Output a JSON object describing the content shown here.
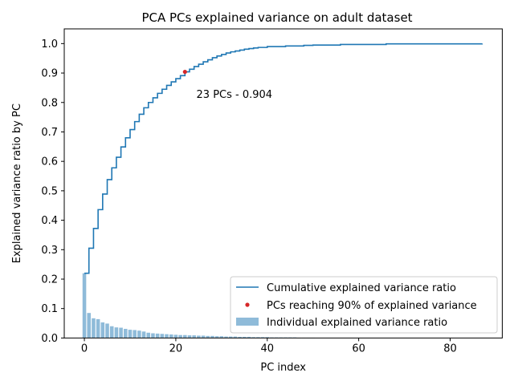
{
  "chart_data": {
    "type": "bar",
    "title": "PCA PCs explained variance on adult dataset",
    "xlabel": "PC index",
    "ylabel": "Explained variance ratio by PC",
    "xlim": [
      -4.4,
      91.4
    ],
    "ylim": [
      0,
      1.05
    ],
    "xticks": [
      0,
      20,
      40,
      60,
      80
    ],
    "yticks": [
      0.0,
      0.1,
      0.2,
      0.3,
      0.4,
      0.5,
      0.6,
      0.7,
      0.8,
      0.9,
      1.0
    ],
    "grid": false,
    "legend_position": "lower right",
    "bar_color": "#1f77b4",
    "line_color": "#1f77b4",
    "marker_color": "#d62728",
    "series": [
      {
        "name": "Individual explained variance ratio",
        "type": "bar",
        "x": [
          0,
          1,
          2,
          3,
          4,
          5,
          6,
          7,
          8,
          9,
          10,
          11,
          12,
          13,
          14,
          15,
          16,
          17,
          18,
          19,
          20,
          21,
          22,
          23,
          24,
          25,
          26,
          27,
          28,
          29,
          30,
          31,
          32,
          33,
          34,
          35,
          36,
          37,
          38,
          39,
          40,
          41,
          42,
          43,
          44,
          45,
          46,
          47,
          48,
          49,
          50
        ],
        "values": [
          0.22,
          0.085,
          0.067,
          0.064,
          0.053,
          0.049,
          0.04,
          0.036,
          0.035,
          0.031,
          0.028,
          0.027,
          0.025,
          0.022,
          0.018,
          0.016,
          0.015,
          0.014,
          0.013,
          0.012,
          0.011,
          0.01,
          0.01,
          0.009,
          0.009,
          0.008,
          0.008,
          0.007,
          0.007,
          0.006,
          0.006,
          0.005,
          0.005,
          0.005,
          0.004,
          0.004,
          0.004,
          0.003,
          0.003,
          0.003,
          0.003,
          0.002,
          0.002,
          0.002,
          0.002,
          0.002,
          0.002,
          0.001,
          0.001,
          0.001,
          0.001
        ]
      },
      {
        "name": "Cumulative explained variance ratio",
        "type": "step",
        "x": [
          0,
          1,
          2,
          3,
          4,
          5,
          6,
          7,
          8,
          9,
          10,
          11,
          12,
          13,
          14,
          15,
          16,
          17,
          18,
          19,
          20,
          21,
          22,
          23,
          24,
          25,
          26,
          27,
          28,
          29,
          30,
          31,
          32,
          33,
          34,
          35,
          36,
          37,
          38,
          40,
          44,
          48,
          50,
          56,
          66,
          87
        ],
        "values": [
          0.22,
          0.305,
          0.372,
          0.436,
          0.489,
          0.538,
          0.578,
          0.614,
          0.649,
          0.68,
          0.708,
          0.735,
          0.76,
          0.782,
          0.8,
          0.816,
          0.831,
          0.845,
          0.858,
          0.87,
          0.881,
          0.891,
          0.904,
          0.913,
          0.922,
          0.93,
          0.938,
          0.945,
          0.952,
          0.958,
          0.963,
          0.968,
          0.972,
          0.975,
          0.978,
          0.981,
          0.983,
          0.985,
          0.987,
          0.99,
          0.992,
          0.994,
          0.995,
          0.997,
          0.999,
          1.0
        ]
      },
      {
        "name": "PCs reaching 90% of explained variance",
        "type": "scatter",
        "x": [
          22
        ],
        "values": [
          0.904
        ]
      }
    ],
    "annotation": {
      "text": "23 PCs - 0.904",
      "x": 24.5,
      "y": 0.83
    }
  }
}
